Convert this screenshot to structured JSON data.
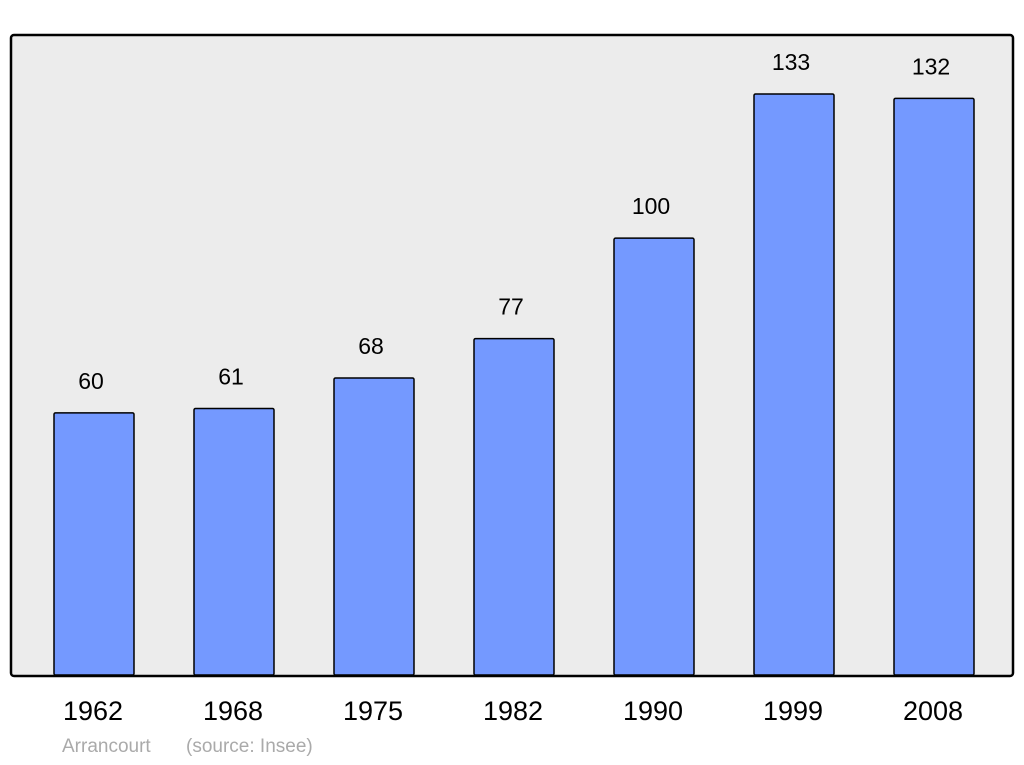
{
  "chart_data": {
    "type": "bar",
    "title": "Arrancourt",
    "source": "(source: Insee)",
    "categories": [
      "1962",
      "1968",
      "1975",
      "1982",
      "1990",
      "1999",
      "2008"
    ],
    "values": [
      60,
      61,
      68,
      77,
      100,
      133,
      132
    ],
    "color": "#7499ff",
    "background": "#ececec"
  }
}
